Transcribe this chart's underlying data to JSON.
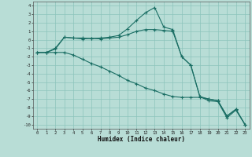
{
  "xlabel": "Humidex (Indice chaleur)",
  "bg_color": "#b8ddd6",
  "grid_color": "#8cc4bc",
  "line_color": "#1a6e64",
  "x": [
    0,
    1,
    2,
    3,
    4,
    5,
    6,
    7,
    8,
    9,
    10,
    11,
    12,
    13,
    14,
    15,
    16,
    17,
    18,
    19,
    20,
    21,
    22,
    23
  ],
  "y_top": [
    -1.5,
    -1.5,
    -1.1,
    0.3,
    0.2,
    0.2,
    0.15,
    0.2,
    0.3,
    0.5,
    1.3,
    2.3,
    3.2,
    3.8,
    1.5,
    1.2,
    -2.0,
    -3.0,
    -6.7,
    -7.2,
    -7.3,
    -9.2,
    -8.3,
    -10.0
  ],
  "y_mid": [
    -1.5,
    -1.5,
    -1.0,
    0.3,
    0.2,
    0.1,
    0.15,
    0.1,
    0.2,
    0.3,
    0.6,
    1.0,
    1.2,
    1.2,
    1.1,
    1.0,
    -2.0,
    -3.0,
    -6.7,
    -7.0,
    -7.2,
    -9.0,
    -8.2,
    -10.0
  ],
  "y_bot": [
    -1.5,
    -1.5,
    -1.5,
    -1.5,
    -1.8,
    -2.3,
    -2.8,
    -3.2,
    -3.7,
    -4.2,
    -4.8,
    -5.2,
    -5.7,
    -6.0,
    -6.4,
    -6.7,
    -6.8,
    -6.8,
    -6.8,
    -7.0,
    -7.2,
    -9.0,
    -8.2,
    -10.0
  ],
  "xlim": [
    -0.5,
    23.5
  ],
  "ylim": [
    -10.5,
    4.5
  ],
  "yticks": [
    4,
    3,
    2,
    1,
    0,
    -1,
    -2,
    -3,
    -4,
    -5,
    -6,
    -7,
    -8,
    -9,
    -10
  ],
  "xticks": [
    0,
    1,
    2,
    3,
    4,
    5,
    6,
    7,
    8,
    9,
    10,
    11,
    12,
    13,
    14,
    15,
    16,
    17,
    18,
    19,
    20,
    21,
    22,
    23
  ]
}
